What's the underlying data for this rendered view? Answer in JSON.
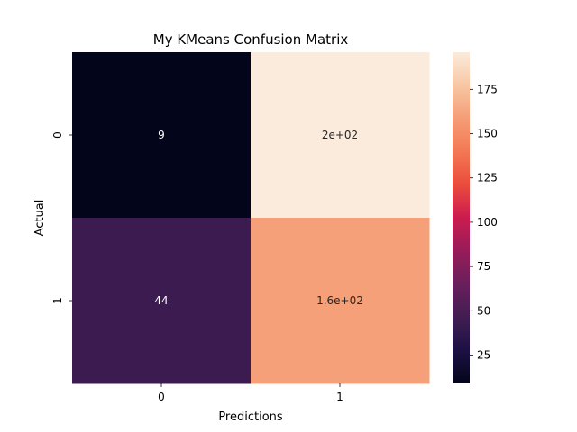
{
  "chart_data": {
    "type": "heatmap",
    "title": "My KMeans Confusion Matrix",
    "xlabel": "Predictions",
    "ylabel": "Actual",
    "x_categories": [
      "0",
      "1"
    ],
    "y_categories": [
      "0",
      "1"
    ],
    "values": [
      [
        9,
        196
      ],
      [
        44,
        160
      ]
    ],
    "annotations": [
      [
        "9",
        "2e+02"
      ],
      [
        "44",
        "1.6e+02"
      ]
    ],
    "colormap": "rocket",
    "colorbar": {
      "range": [
        9,
        196
      ],
      "ticks": [
        25,
        50,
        75,
        100,
        125,
        150,
        175
      ],
      "tick_labels": [
        "25",
        "50",
        "75",
        "100",
        "125",
        "150",
        "175"
      ]
    }
  }
}
